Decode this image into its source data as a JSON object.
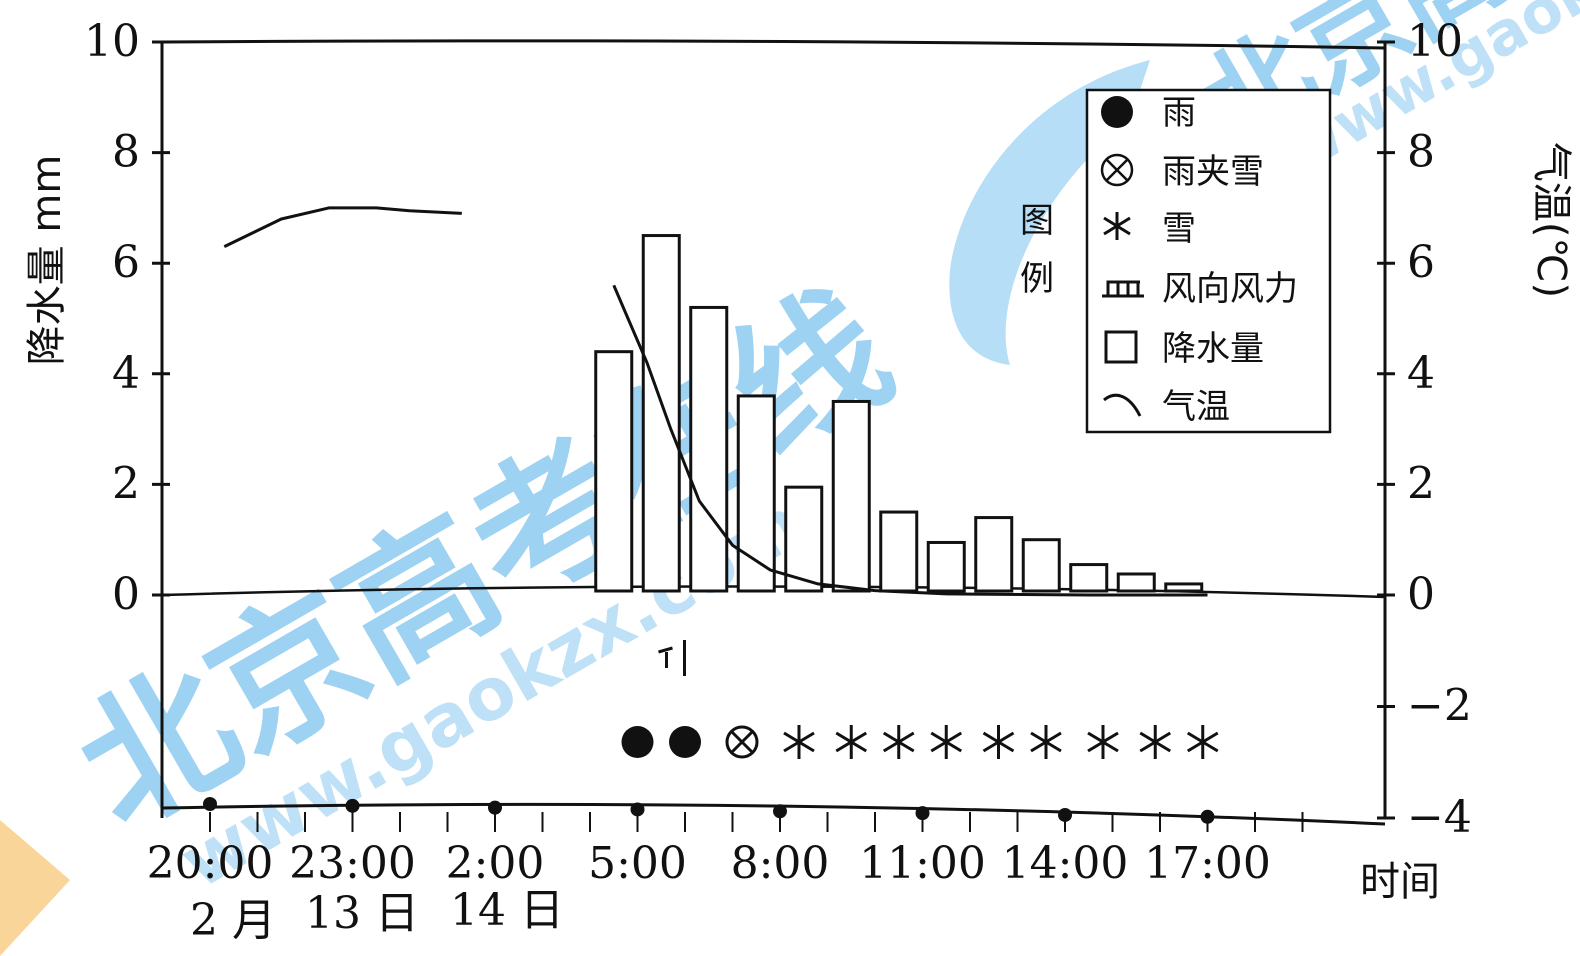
{
  "chart_data": {
    "type": "bar",
    "ylabel": "降水量 mm",
    "y2label": "气温(℃)",
    "ylim": [
      0,
      10
    ],
    "y2lim": [
      -4,
      10
    ],
    "yticks": [
      0,
      2,
      4,
      6,
      8,
      10
    ],
    "y2ticks": [
      -4,
      -2,
      0,
      2,
      4,
      6,
      8,
      10
    ],
    "xticks": [
      {
        "hour": 0,
        "label": "20:00"
      },
      {
        "hour": 3,
        "label": "23:00"
      },
      {
        "hour": 6,
        "label": "2:00"
      },
      {
        "hour": 9,
        "label": "5:00"
      },
      {
        "hour": 12,
        "label": "8:00"
      },
      {
        "hour": 15,
        "label": "11:00"
      },
      {
        "hour": 18,
        "label": "14:00"
      },
      {
        "hour": 21,
        "label": "17:00"
      }
    ],
    "xlabel": "时间",
    "date_labels": [
      "2 月",
      "13 日",
      "14 日"
    ],
    "precipitation": {
      "name": "降水量",
      "hours": [
        8.5,
        9.5,
        10.5,
        11.5,
        12.5,
        13.5,
        14.5,
        15.5,
        16.5,
        17.5,
        18.5,
        19.5,
        20.5
      ],
      "values": [
        4.4,
        6.5,
        5.2,
        3.6,
        1.95,
        3.5,
        1.5,
        0.95,
        1.4,
        1.0,
        0.55,
        0.38,
        0.2
      ]
    },
    "temperature": {
      "name": "气温",
      "segments": [
        {
          "hours": [
            0.3,
            1.5,
            2.5,
            3.5,
            4.2,
            5.3
          ],
          "values": [
            6.3,
            6.8,
            7.0,
            7.0,
            6.95,
            6.9
          ]
        },
        {
          "hours": [
            8.5,
            8.8,
            9.2,
            9.7,
            10.3,
            11.0,
            11.8,
            12.8,
            14.0,
            15.5,
            18.5,
            21.0
          ],
          "values": [
            5.6,
            5.0,
            4.2,
            3.0,
            1.7,
            0.9,
            0.45,
            0.2,
            0.08,
            0.02,
            0.0,
            0.0
          ]
        }
      ]
    },
    "weather_symbols": {
      "hours": [
        9.0,
        10.0,
        11.2,
        12.4,
        13.5,
        14.5,
        15.5,
        16.6,
        17.6,
        18.8,
        19.9,
        20.9
      ],
      "symbols": [
        "rain",
        "rain",
        "sleet",
        "snow",
        "snow",
        "snow",
        "snow",
        "snow",
        "snow",
        "snow",
        "snow",
        "snow"
      ]
    },
    "wind_marker_hour": 10.2,
    "legend": {
      "title": "图例",
      "items": [
        {
          "icon": "rain-dot-icon",
          "label": "雨"
        },
        {
          "icon": "sleet-icon",
          "label": "雨夹雪"
        },
        {
          "icon": "snow-icon",
          "label": "雪"
        },
        {
          "icon": "wind-barb-icon",
          "label": "风向风力"
        },
        {
          "icon": "bar-box-icon",
          "label": "降水量"
        },
        {
          "icon": "temp-line-icon",
          "label": "气温"
        }
      ]
    }
  },
  "watermark": {
    "cn": "北京高考在线",
    "url": "www.gaokzx.com",
    "colors": {
      "blue": "#7ec3ef",
      "orange": "#f8c777"
    }
  }
}
